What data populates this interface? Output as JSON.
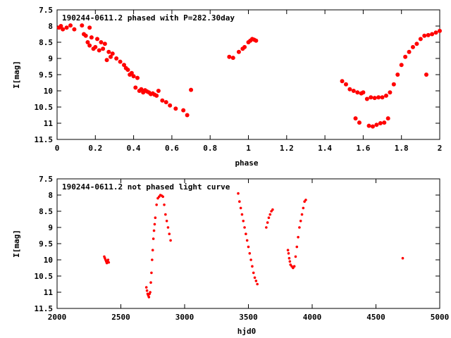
{
  "chart_data": [
    {
      "type": "scatter",
      "title": "190244-0611.2 phased with P=282.30day",
      "xlabel": "phase",
      "ylabel": "I[mag]",
      "xlim": [
        0,
        2
      ],
      "ylim": [
        7.5,
        11.5
      ],
      "y_inverted": true,
      "x_ticks": [
        "0",
        "0.2",
        "0.4",
        "0.6",
        "0.8",
        "1",
        "1.2",
        "1.4",
        "1.6",
        "1.8",
        "2"
      ],
      "y_ticks": [
        "7.5",
        "8",
        "8.5",
        "9",
        "9.5",
        "10",
        "10.5",
        "11",
        "11.5"
      ],
      "marker_color": "#ff0000",
      "series": [
        {
          "x": [
            0.01,
            0.02,
            0.03,
            0.05,
            0.07,
            0.09,
            0.13,
            0.15,
            0.17,
            0.14,
            0.16,
            0.18,
            0.17,
            0.19,
            0.21,
            0.2,
            0.23,
            0.22,
            0.25,
            0.24,
            0.27,
            0.26,
            0.29,
            0.31,
            0.28,
            0.33,
            0.35,
            0.36,
            0.38,
            0.39,
            0.37,
            0.4,
            0.42,
            0.41,
            0.43,
            0.44,
            0.45,
            0.46,
            0.47,
            0.48,
            0.49,
            0.5,
            0.51,
            0.52,
            0.53,
            0.55,
            0.57,
            0.59,
            0.62,
            0.66,
            0.68,
            0.7,
            0.9,
            0.92,
            0.95,
            0.97,
            0.98,
            1.0,
            1.01,
            1.02,
            1.03,
            1.04,
            1.49,
            1.51,
            1.53,
            1.55,
            1.57,
            1.59,
            1.6,
            1.62,
            1.64,
            1.66,
            1.68,
            1.7,
            1.72,
            1.74,
            1.76,
            1.78,
            1.8,
            1.82,
            1.84,
            1.86,
            1.88,
            1.9,
            1.92,
            1.94,
            1.96,
            1.98,
            2.0,
            1.56,
            1.58,
            1.63,
            1.65,
            1.67,
            1.69,
            1.71,
            1.73,
            1.93
          ],
          "y": [
            8.05,
            8.0,
            8.1,
            8.05,
            7.98,
            8.1,
            7.98,
            8.3,
            8.05,
            8.25,
            8.5,
            8.35,
            8.6,
            8.7,
            8.4,
            8.65,
            8.5,
            8.75,
            8.55,
            8.7,
            8.8,
            9.05,
            8.85,
            9.0,
            8.95,
            9.1,
            9.2,
            9.3,
            9.5,
            9.45,
            9.35,
            9.55,
            9.6,
            9.9,
            10.0,
            9.95,
            10.05,
            9.98,
            10.02,
            10.05,
            10.1,
            10.08,
            10.12,
            10.15,
            10.0,
            10.3,
            10.35,
            10.45,
            10.55,
            10.6,
            10.75,
            9.97,
            8.95,
            8.98,
            8.8,
            8.7,
            8.65,
            8.5,
            8.45,
            8.4,
            8.42,
            8.45,
            9.7,
            9.8,
            9.95,
            10.0,
            10.05,
            10.08,
            10.05,
            10.25,
            10.2,
            10.22,
            10.2,
            10.2,
            10.15,
            10.05,
            9.8,
            9.5,
            9.2,
            8.95,
            8.8,
            8.65,
            8.55,
            8.4,
            8.3,
            8.28,
            8.25,
            8.2,
            8.15,
            10.85,
            10.98,
            11.08,
            11.1,
            11.05,
            11.0,
            10.98,
            10.85,
            9.5
          ]
        }
      ]
    },
    {
      "type": "scatter",
      "title": "190244-0611.2 not phased light curve",
      "xlabel": "hjd0",
      "ylabel": "I[mag]",
      "xlim": [
        2000,
        5000
      ],
      "ylim": [
        7.5,
        11.5
      ],
      "y_inverted": true,
      "x_ticks": [
        "2000",
        "2500",
        "3000",
        "3500",
        "4000",
        "4500",
        "5000"
      ],
      "y_ticks": [
        "7.5",
        "8",
        "8.5",
        "9",
        "9.5",
        "10",
        "10.5",
        "11",
        "11.5"
      ],
      "marker_color": "#ff0000",
      "series": [
        {
          "x": [
            2370,
            2375,
            2380,
            2385,
            2390,
            2395,
            2400,
            2405,
            2700,
            2705,
            2710,
            2715,
            2720,
            2725,
            2730,
            2735,
            2740,
            2745,
            2750,
            2755,
            2760,
            2765,
            2770,
            2780,
            2790,
            2800,
            2810,
            2820,
            2830,
            2840,
            2850,
            2860,
            2870,
            2880,
            2890,
            3420,
            3430,
            3440,
            3450,
            3460,
            3470,
            3480,
            3490,
            3500,
            3510,
            3520,
            3530,
            3540,
            3550,
            3560,
            3570,
            3640,
            3650,
            3660,
            3670,
            3680,
            3690,
            3810,
            3815,
            3820,
            3825,
            3830,
            3840,
            3850,
            3860,
            3870,
            3880,
            3890,
            3900,
            3910,
            3920,
            3930,
            3940,
            3950,
            4710
          ],
          "y": [
            9.9,
            9.95,
            10.0,
            10.05,
            10.1,
            10.05,
            10.0,
            10.08,
            10.85,
            10.95,
            11.05,
            11.1,
            11.15,
            11.05,
            11.0,
            10.7,
            10.4,
            10.0,
            9.7,
            9.35,
            9.1,
            8.9,
            8.7,
            8.3,
            8.1,
            8.05,
            8.0,
            8.02,
            8.05,
            8.3,
            8.6,
            8.8,
            9.0,
            9.2,
            9.4,
            7.95,
            8.2,
            8.4,
            8.6,
            8.8,
            9.0,
            9.2,
            9.4,
            9.6,
            9.8,
            10.0,
            10.2,
            10.4,
            10.55,
            10.65,
            10.75,
            9.0,
            8.85,
            8.7,
            8.6,
            8.5,
            8.45,
            9.7,
            9.8,
            9.95,
            10.05,
            10.15,
            10.2,
            10.25,
            10.2,
            9.9,
            9.6,
            9.3,
            9.0,
            8.8,
            8.6,
            8.4,
            8.2,
            8.15,
            9.95
          ]
        }
      ]
    }
  ]
}
